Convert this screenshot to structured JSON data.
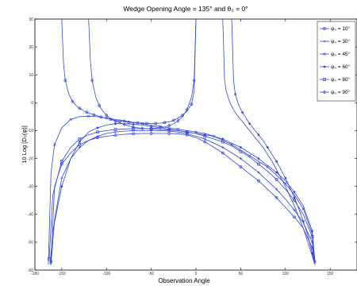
{
  "chart_data": {
    "type": "line",
    "title": "Wedge Opening Angle = 135°  and θ₀ = 0°",
    "xlabel": "Observation Angle",
    "ylabel": "10 Log [D₀(φ)]",
    "xlim": [
      -180,
      180
    ],
    "ylim": [
      -60,
      30
    ],
    "xticks": [
      -180,
      -150,
      -100,
      -50,
      0,
      50,
      100,
      150
    ],
    "yticks": [
      30,
      20,
      10,
      0,
      -10,
      -20,
      -30,
      -40,
      -50,
      -60
    ],
    "grid": false,
    "legend_position": "top-right",
    "line_color": "#3344dd",
    "series": [
      {
        "name": "φ₀ = 10°",
        "marker": "circle",
        "y_at_center": -12.0,
        "x": [
          -162,
          -158,
          -150,
          -140,
          -130,
          -120,
          -110,
          -100,
          -90,
          -80,
          -70,
          -60,
          -50,
          -40,
          -30,
          -20,
          -10,
          0,
          10,
          20,
          30,
          40,
          50,
          60,
          70,
          80,
          90,
          100,
          110,
          120,
          130,
          133
        ],
        "y": [
          -57,
          -30,
          -22,
          -18,
          -15,
          -13.5,
          -12.5,
          -12,
          -11.6,
          -11.3,
          -11.1,
          -11,
          -11,
          -11,
          -11,
          -11.1,
          -11.5,
          -12.5,
          -14,
          -16,
          -18,
          -20.5,
          -23,
          -25.5,
          -28,
          -31,
          -34,
          -37.5,
          -41,
          -45,
          -52,
          -58
        ]
      },
      {
        "name": "φ₀ = 30°",
        "marker": "plus",
        "y_at_center": -10.0,
        "x": [
          -162,
          -158,
          -150,
          -140,
          -130,
          -120,
          -110,
          -100,
          -90,
          -80,
          -70,
          -60,
          -50,
          -40,
          -30,
          -20,
          -10,
          0,
          10,
          20,
          30,
          40,
          50,
          60,
          70,
          80,
          90,
          100,
          110,
          120,
          130,
          133
        ],
        "y": [
          -58,
          -42,
          -27,
          -20,
          -16,
          -13.5,
          -12,
          -11,
          -10.5,
          -10.2,
          -10,
          -10,
          -10,
          -10,
          -10.2,
          -10.5,
          -11,
          -12,
          -13,
          -14.5,
          -16,
          -18,
          -20,
          -22.5,
          -25,
          -28,
          -31,
          -34.5,
          -38.5,
          -43,
          -50,
          -57
        ]
      },
      {
        "name": "φ₀ = 45°",
        "marker": "x",
        "y_at_center": -6.0,
        "x": [
          -165,
          -162,
          -158,
          -150,
          -140,
          -130,
          -120,
          -110,
          -100,
          -90,
          -80,
          -70,
          -60,
          -50,
          -40,
          -30,
          -20,
          -10,
          0,
          10,
          20,
          30,
          40,
          50,
          60,
          70,
          80,
          90,
          100,
          110,
          120,
          130,
          133
        ],
        "y": [
          -58,
          -25,
          -15,
          -9,
          -6,
          -5,
          -4.8,
          -5,
          -5.5,
          -6,
          -6.5,
          -7,
          -7.5,
          -8,
          -8.5,
          -9,
          -9.5,
          -10,
          -10.5,
          -11,
          -12,
          -13.5,
          -15,
          -17,
          -19,
          -21,
          -23,
          -26,
          -29,
          -33,
          -38,
          -47,
          -57
        ]
      },
      {
        "name": "φ₀ = 60°",
        "marker": "star",
        "y_at_center": -2.0,
        "x": [
          -163,
          -160,
          -150,
          -140,
          -130,
          -120,
          -110,
          -100,
          -90,
          -80,
          -70,
          -60,
          -50,
          -40,
          -30,
          -20,
          -10,
          0,
          10,
          20,
          30,
          40,
          50,
          60,
          70,
          80,
          90,
          100,
          110,
          120,
          130,
          133
        ],
        "y": [
          -58,
          -46,
          -30,
          -20,
          -14,
          -10.5,
          -9,
          -8,
          -7.5,
          -7.5,
          -7.7,
          -8,
          -8.5,
          -9,
          -9.5,
          -10,
          -10.5,
          -11,
          -11.5,
          -12,
          -13,
          -14.5,
          -16,
          -18,
          -20,
          -22.5,
          -25,
          -28,
          -32,
          -37,
          -46,
          -57
        ]
      },
      {
        "name": "φ₀ = 80°",
        "marker": "square",
        "y_at_center": -9.0,
        "x": [
          -164,
          -160,
          -150,
          -140,
          -130,
          -120,
          -110,
          -100,
          -90,
          -80,
          -70,
          -60,
          -50,
          -40,
          -30,
          -20,
          -10,
          0,
          10,
          20,
          30,
          40,
          50,
          60,
          70,
          80,
          90,
          100,
          110,
          120,
          130,
          133
        ],
        "y": [
          -56,
          -33,
          -21,
          -16,
          -13,
          -11.5,
          -10.5,
          -10,
          -9.6,
          -9.4,
          -9.3,
          -9.3,
          -9.4,
          -9.6,
          -9.8,
          -10,
          -10.5,
          -11,
          -12,
          -13,
          -14,
          -15.5,
          -17.5,
          -19.5,
          -22,
          -24.5,
          -27.5,
          -31,
          -35,
          -40,
          -48,
          -58
        ]
      },
      {
        "name": "φ₀ = 90°",
        "marker": "diamond",
        "y_at_center": -6.0,
        "x": [
          -120,
          -118,
          -116,
          -112,
          -108,
          -104,
          -100,
          -95,
          -90,
          -85,
          -80,
          -75,
          -70,
          -65,
          -60,
          -55,
          -50,
          -45,
          -40,
          -35,
          -30,
          -25,
          -20,
          -15,
          -10,
          -5,
          -2,
          0
        ],
        "y": [
          30,
          15,
          8,
          2,
          -1,
          -3,
          -4.5,
          -5.8,
          -6.6,
          -7.2,
          -7.8,
          -8.3,
          -8.7,
          -9,
          -9.2,
          -9.3,
          -9.3,
          -9.2,
          -9,
          -8.7,
          -8.2,
          -7.5,
          -6.5,
          -5,
          -2.5,
          2,
          8,
          30
        ]
      }
    ],
    "extra_curves": [
      {
        "marker": "circle",
        "x": [
          -150,
          -148,
          -146,
          -142,
          -138,
          -134,
          -130,
          -126,
          -122,
          -118,
          -114,
          -110,
          -106,
          -100,
          -95,
          -90,
          -85,
          -80,
          -75,
          -70,
          -65,
          -60,
          -55,
          -50,
          -45,
          -40,
          -35,
          -30,
          -25,
          -20,
          -15,
          -10,
          -5,
          -2,
          0
        ],
        "y": [
          30,
          14,
          8,
          3,
          0.5,
          -1,
          -2,
          -2.8,
          -3.4,
          -3.9,
          -4.3,
          -4.7,
          -5.1,
          -5.6,
          -6,
          -6.3,
          -6.6,
          -6.8,
          -7,
          -7.1,
          -7.2,
          -7.3,
          -7.4,
          -7.4,
          -7.4,
          -7.3,
          -7.1,
          -6.8,
          -6.3,
          -5.5,
          -4.5,
          -3,
          -0.5,
          4,
          30
        ]
      },
      {
        "marker": "none",
        "x": [
          30,
          32,
          34,
          38,
          42,
          46,
          50,
          55,
          60,
          65,
          70,
          75,
          80,
          85,
          90,
          95,
          100,
          105,
          110,
          115,
          120,
          125,
          130,
          133
        ],
        "y": [
          30,
          8,
          4,
          0,
          -2.5,
          -4.5,
          -6,
          -8,
          -10,
          -12,
          -14,
          -16,
          -18.5,
          -21,
          -24,
          -27,
          -30,
          -33.5,
          -37,
          -41,
          -45,
          -50,
          -55,
          -58
        ]
      },
      {
        "marker": "star",
        "x": [
          40,
          42,
          44,
          48,
          52,
          56,
          60,
          65,
          70,
          75,
          80,
          85,
          90,
          95,
          100,
          105,
          110,
          115,
          120,
          125,
          130,
          133
        ],
        "y": [
          30,
          8,
          3,
          -1,
          -3.5,
          -5.5,
          -7.5,
          -9.5,
          -11.5,
          -13.5,
          -16,
          -18.5,
          -21,
          -24,
          -27,
          -30.5,
          -34,
          -38,
          -42.5,
          -47.5,
          -54,
          -58
        ]
      }
    ]
  }
}
